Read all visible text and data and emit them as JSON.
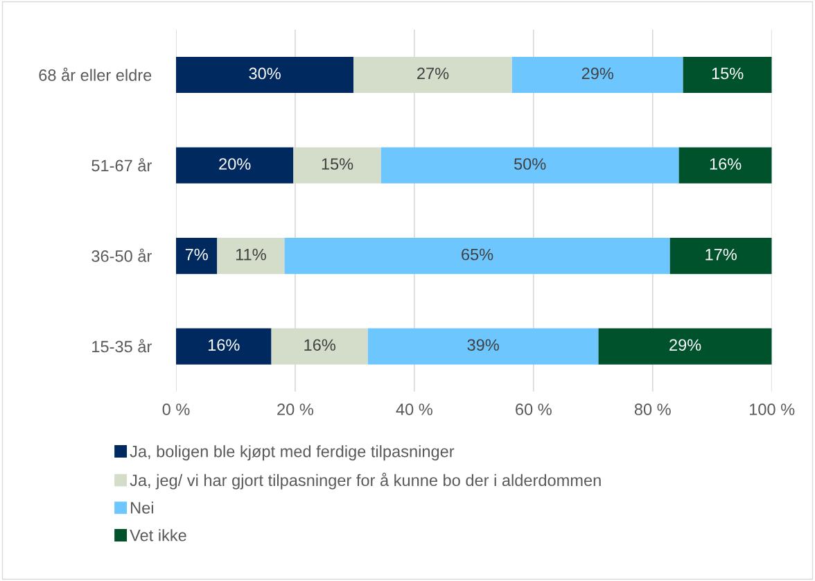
{
  "chart_data": {
    "type": "bar",
    "orientation": "horizontal",
    "stacked": true,
    "categories": [
      "68 år eller eldre",
      "51-67 år",
      "36-50 år",
      "15-35 år"
    ],
    "series": [
      {
        "name": "Ja, boligen ble kjøpt med ferdige tilpasninger",
        "color": "#002960",
        "values": [
          29.8,
          19.7,
          6.9,
          16.0
        ],
        "value_labels": [
          "30%",
          "20%",
          "7%",
          "16%"
        ]
      },
      {
        "name": "Ja, jeg/ vi har gjort tilpasninger for å kunne bo der i alderdommen",
        "color": "#d4dcca",
        "values": [
          26.6,
          14.7,
          11.3,
          16.2
        ],
        "value_labels": [
          "27%",
          "15%",
          "11%",
          "16%"
        ]
      },
      {
        "name": "Nei",
        "color": "#6ec6ff",
        "values": [
          28.7,
          50.0,
          64.7,
          38.7
        ],
        "value_labels": [
          "29%",
          "50%",
          "65%",
          "39%"
        ]
      },
      {
        "name": "Vet ikke",
        "color": "#00522c",
        "values": [
          14.9,
          15.6,
          17.1,
          29.1
        ],
        "value_labels": [
          "15%",
          "16%",
          "17%",
          "29%"
        ]
      }
    ],
    "xlim": [
      0,
      100
    ],
    "xticks": [
      {
        "value": 0,
        "label": "0 %"
      },
      {
        "value": 20,
        "label": "20 %"
      },
      {
        "value": 40,
        "label": "40 %"
      },
      {
        "value": 60,
        "label": "60 %"
      },
      {
        "value": 80,
        "label": "80 %"
      },
      {
        "value": 100,
        "label": "100 %"
      }
    ],
    "grid": "x",
    "legend": "bottom"
  }
}
